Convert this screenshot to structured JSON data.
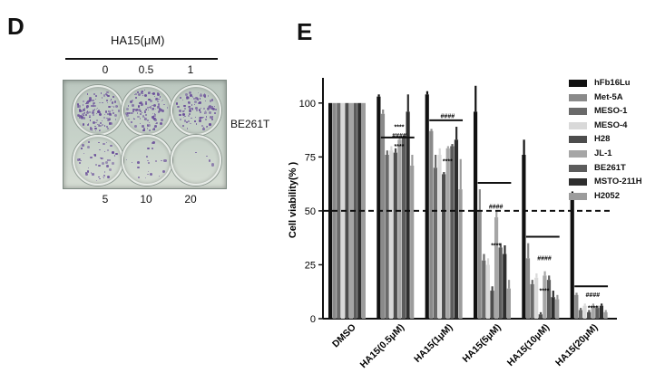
{
  "panel_d": {
    "letter": "D",
    "dose_title": "HA15(μM)",
    "top_doses": [
      "0",
      "0.5",
      "1"
    ],
    "bottom_doses": [
      "5",
      "10",
      "20"
    ],
    "cell_line_label": "BE261T",
    "colony_density": [
      0.95,
      0.9,
      0.75,
      0.35,
      0.15,
      0.03
    ],
    "colony_color": "#6a4e9a"
  },
  "panel_e": {
    "letter": "E"
  },
  "chart_data": {
    "type": "bar",
    "title": "",
    "xlabel": "",
    "ylabel": "Cell viability(% )",
    "ylim": [
      0,
      110
    ],
    "yticks": [
      "0",
      "25",
      "50",
      "75",
      "100"
    ],
    "reference_line": 50,
    "categories": [
      "DMSO",
      "HA15(0.5μM)",
      "HA15(1μM)",
      "HA15(5μM)",
      "HA15(10μM)",
      "HA15(20μM)"
    ],
    "series": [
      {
        "name": "hFb16Lu",
        "color": "#111111",
        "values": [
          100,
          103,
          104,
          96,
          76,
          55
        ],
        "errors": [
          0,
          1,
          1.5,
          12,
          7,
          4
        ]
      },
      {
        "name": "Met-5A",
        "color": "#8a8a8a",
        "values": [
          100,
          95,
          87,
          50,
          28,
          11
        ],
        "errors": [
          0,
          2,
          1,
          10,
          7,
          1
        ]
      },
      {
        "name": "MESO-1",
        "color": "#6a6a6a",
        "values": [
          100,
          76,
          70,
          27,
          16,
          4
        ],
        "errors": [
          0,
          2,
          6,
          3,
          2,
          1
        ]
      },
      {
        "name": "MESO-4",
        "color": "#d9d9d9",
        "values": [
          100,
          78,
          76,
          25,
          19,
          6
        ],
        "errors": [
          0,
          2,
          3,
          3,
          2,
          1
        ]
      },
      {
        "name": "H28",
        "color": "#4d4d4d",
        "values": [
          100,
          77,
          67,
          13,
          2,
          3
        ],
        "errors": [
          0,
          2,
          1,
          2,
          1,
          1
        ]
      },
      {
        "name": "JL-1",
        "color": "#a6a6a6",
        "values": [
          100,
          83,
          79,
          47,
          20,
          6
        ],
        "errors": [
          0,
          1,
          1,
          3,
          2,
          1
        ]
      },
      {
        "name": "BE261T",
        "color": "#5c5c5c",
        "values": [
          100,
          84,
          80,
          33,
          18,
          5
        ],
        "errors": [
          0,
          1,
          1,
          2,
          2,
          1
        ]
      },
      {
        "name": "MSTO-211H",
        "color": "#2e2e2e",
        "values": [
          100,
          96,
          83,
          30,
          10,
          6
        ],
        "errors": [
          0,
          8,
          6,
          4,
          3,
          1
        ]
      },
      {
        "name": "H2052",
        "color": "#9c9c9c",
        "values": [
          100,
          71,
          60,
          14,
          9,
          3
        ],
        "errors": [
          0,
          5,
          14,
          4,
          2,
          1
        ]
      }
    ],
    "significance": [
      {
        "text": "****",
        "category_index": 1,
        "value": 88
      },
      {
        "text": "####",
        "category_index": 1,
        "value": 84
      },
      {
        "text": "****",
        "category_index": 1,
        "value": 79
      },
      {
        "text": "####",
        "category_index": 2,
        "value": 93
      },
      {
        "text": "****",
        "category_index": 2,
        "value": 72
      },
      {
        "text": "####",
        "category_index": 3,
        "value": 51
      },
      {
        "text": "****",
        "category_index": 3,
        "value": 33
      },
      {
        "text": "####",
        "category_index": 4,
        "value": 27
      },
      {
        "text": "****",
        "category_index": 4,
        "value": 12
      },
      {
        "text": "####",
        "category_index": 5,
        "value": 10
      },
      {
        "text": "****",
        "category_index": 5,
        "value": 4
      }
    ]
  }
}
